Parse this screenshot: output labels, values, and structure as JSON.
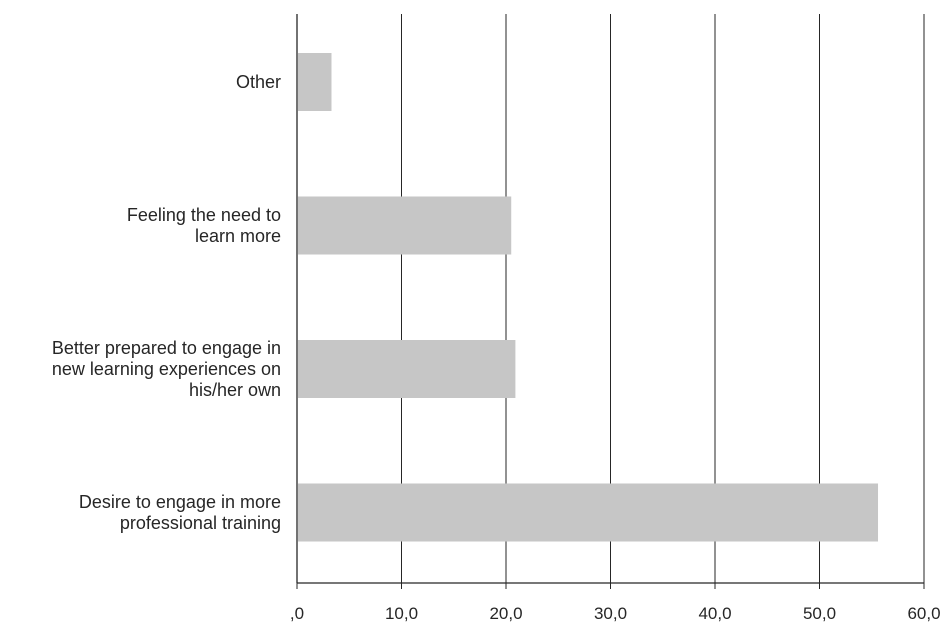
{
  "chart_data": {
    "type": "bar",
    "orientation": "horizontal",
    "categories": [
      [
        "Desire to engage in more",
        "professional training"
      ],
      [
        "Better prepared to engage in",
        "new learning experiences on",
        "his/her own"
      ],
      [
        "Feeling the need to",
        "learn more"
      ],
      [
        "Other"
      ]
    ],
    "values": [
      55.6,
      20.9,
      20.5,
      3.3
    ],
    "xlim": [
      0,
      60
    ],
    "xticks": [
      0,
      10,
      20,
      30,
      40,
      50,
      60
    ],
    "xtick_labels": [
      ",0",
      "10,0",
      "20,0",
      "30,0",
      "40,0",
      "50,0",
      "60,0"
    ],
    "title": "",
    "xlabel": "",
    "ylabel": "",
    "grid": "vertical",
    "legend": "none",
    "colors": {
      "bar": "#c6c6c6",
      "grid": "#262626",
      "text": "#262626"
    }
  }
}
